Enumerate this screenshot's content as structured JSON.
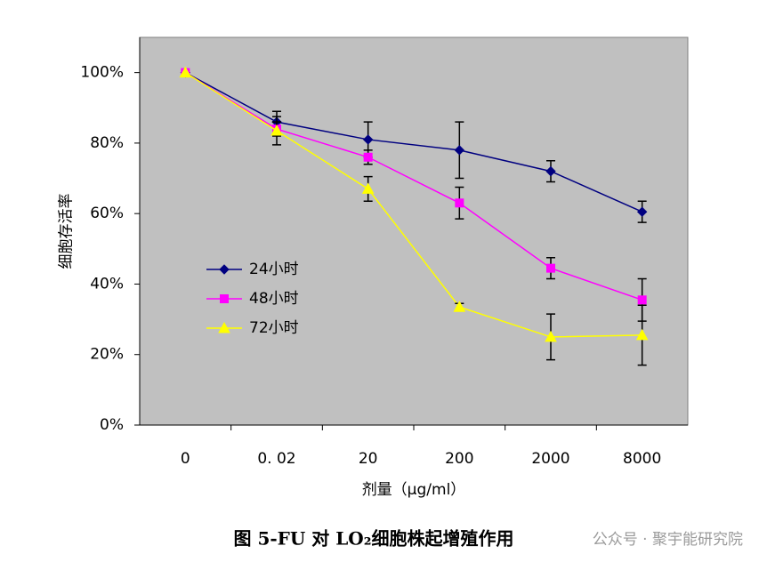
{
  "chart_data": {
    "type": "line",
    "x_label": "剂量（μg/ml）",
    "y_label": "细胞存活率",
    "caption": "图 5-FU 对 LO₂细胞株起增殖作用",
    "watermark": "公众号 · 聚宇能研究院",
    "categories": [
      "0",
      "0. 02",
      "20",
      "200",
      "2000",
      "8000"
    ],
    "ylim": [
      0,
      110
    ],
    "yticks": [
      {
        "value": 0,
        "label": "0%"
      },
      {
        "value": 20,
        "label": "20%"
      },
      {
        "value": 40,
        "label": "40%"
      },
      {
        "value": 60,
        "label": "60%"
      },
      {
        "value": 80,
        "label": "80%"
      },
      {
        "value": 100,
        "label": "100%"
      }
    ],
    "grid": false,
    "legend": "left",
    "series": [
      {
        "name": "24小时",
        "color": "#000080",
        "marker": "diamond",
        "values": [
          100,
          86,
          81,
          78,
          72,
          60.5
        ],
        "errors": [
          null,
          3,
          5,
          8,
          3,
          3
        ]
      },
      {
        "name": "48小时",
        "color": "#ff00ff",
        "marker": "square",
        "values": [
          100,
          84,
          76,
          63,
          44.5,
          35.5
        ],
        "errors": [
          null,
          2,
          2,
          4.5,
          3,
          6
        ]
      },
      {
        "name": "72小时",
        "color": "#ffff00",
        "marker": "triangle",
        "values": [
          100,
          83.5,
          67,
          33.5,
          25,
          25.5
        ],
        "errors": [
          null,
          4,
          3.5,
          1,
          6.5,
          8.5
        ]
      }
    ]
  }
}
